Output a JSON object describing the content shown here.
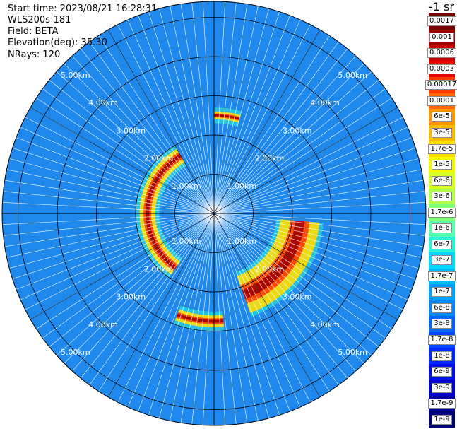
{
  "header": {
    "start_time": "Start time: 2023/08/21 16:28:31",
    "instrument": "WLS200s-181",
    "field": "Field: BETA",
    "elevation": "Elevation(deg): 35.30",
    "nrays": "NRays: 120"
  },
  "colorbar": {
    "unit": "-1 sr",
    "labels": [
      "0.0017",
      "0.001",
      "0.0006",
      "0.0003",
      "0.00017",
      "0.0001",
      "6e-5",
      "3e-5",
      "1.7e-5",
      "1e-5",
      "6e-6",
      "3e-6",
      "1.7e-6",
      "1e-6",
      "6e-7",
      "3e-7",
      "1.7e-7",
      "1e-7",
      "6e-8",
      "3e-8",
      "1.7e-8",
      "1e-8",
      "6e-9",
      "3e-9",
      "1.7e-9",
      "1e-9"
    ],
    "colors": [
      "#7a0000",
      "#a00000",
      "#c80000",
      "#e80000",
      "#ff3b00",
      "#ff6a00",
      "#ff9600",
      "#ffb800",
      "#ffdc00",
      "#f4f800",
      "#d8ff20",
      "#b0ff4a",
      "#84ff7a",
      "#56ffaa",
      "#2af4d8",
      "#00d8ff",
      "#00bcff",
      "#00a0ff",
      "#0084ff",
      "#0066ff",
      "#0046ff",
      "#0028ff",
      "#0010e8",
      "#0000c8",
      "#0000a0",
      "#00007a"
    ]
  },
  "chart_data": {
    "type": "heatmap",
    "projection": "polar PPI",
    "field": "BETA",
    "elevation_deg": 35.3,
    "n_rays": 120,
    "range_rings_km": [
      1,
      2,
      3,
      4,
      5
    ],
    "ring_labels": [
      "1.00km",
      "2.00km",
      "3.00km",
      "4.00km",
      "5.00km"
    ],
    "ring_label_bearings_deg": [
      45,
      135,
      225,
      315
    ],
    "max_range_km": 5.4,
    "background_color": "#1e88ec",
    "high_backscatter_arcs": [
      {
        "name": "west arc",
        "range_km": [
          1.5,
          1.9
        ],
        "bearing_deg": [
          215,
          330
        ],
        "peak": "0.0017"
      },
      {
        "name": "southeast arc",
        "range_km": [
          1.7,
          2.7
        ],
        "bearing_deg": [
          95,
          160
        ],
        "peak": "0.0017"
      },
      {
        "name": "north patches",
        "range_km": [
          2.4,
          2.6
        ],
        "bearing_deg": [
          0,
          15
        ],
        "peak": "0.0006"
      },
      {
        "name": "south patches",
        "range_km": [
          2.6,
          2.9
        ],
        "bearing_deg": [
          175,
          200
        ],
        "peak": "0.0006"
      }
    ]
  }
}
